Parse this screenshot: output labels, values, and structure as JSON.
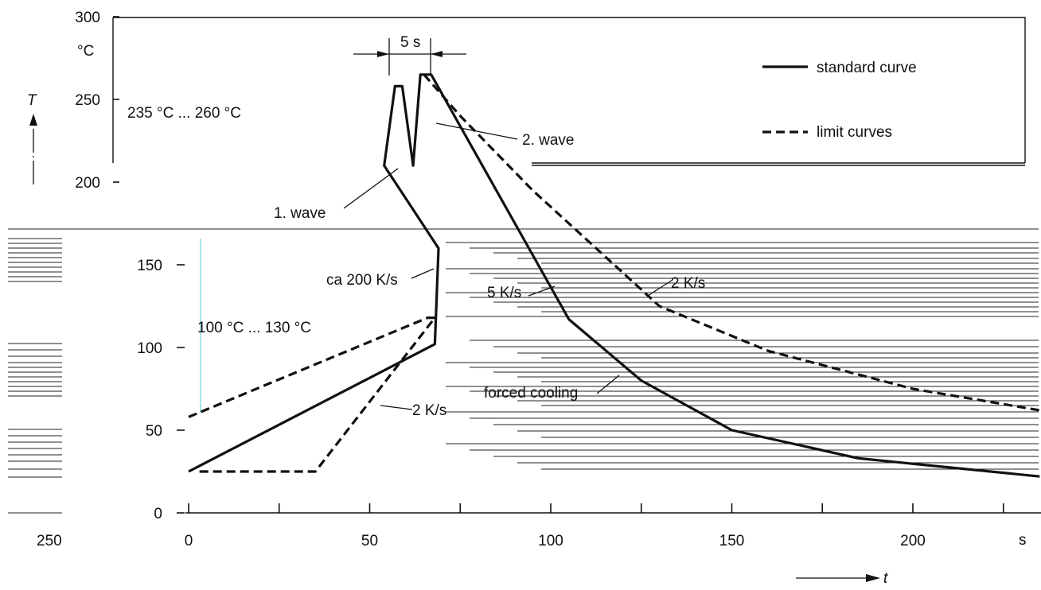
{
  "chart_data": {
    "type": "line",
    "y_unit": "°C",
    "x_unit": "s",
    "y_symbol": "T",
    "x_symbol": "t",
    "y_ticks": [
      0,
      50,
      100,
      150,
      200,
      250,
      300
    ],
    "y_tick_labels": [
      "0",
      "50",
      "100",
      "150",
      "200",
      "250",
      "300"
    ],
    "x_ticks": [
      0,
      50,
      100,
      150,
      200
    ],
    "x_tick_labels": [
      "0",
      "50",
      "100",
      "150",
      "200"
    ],
    "left_cut_x_label": "250",
    "xlim": [
      0,
      235
    ],
    "ylim": [
      0,
      300
    ],
    "legend": {
      "position": "top-right",
      "entries": [
        {
          "label": "standard curve",
          "style": "solid"
        },
        {
          "label": "limit curves",
          "style": "dashed"
        }
      ]
    },
    "annotations": {
      "peak_range": "235 °C ... 260 °C",
      "preheat_range": "100 °C ... 130 °C",
      "duration": "5 s",
      "wave1": "1. wave",
      "wave2": "2. wave",
      "rate_heat": "ca 200 K/s",
      "rate_heat_limit": "2 K/s",
      "rate_cool_std": "5 K/s",
      "rate_cool_limit": "2 K/s",
      "forced_cooling": "forced cooling"
    },
    "series": [
      {
        "style": "solid",
        "points": [
          [
            0,
            25
          ],
          [
            68,
            102
          ],
          [
            69,
            160
          ],
          [
            54,
            210
          ],
          [
            57,
            258
          ],
          [
            59,
            258
          ],
          [
            62,
            210
          ],
          [
            64,
            265
          ],
          [
            67,
            265
          ],
          [
            105,
            117
          ],
          [
            125,
            80
          ],
          [
            150,
            50
          ],
          [
            185,
            33
          ],
          [
            235,
            22
          ]
        ]
      },
      {
        "style": "dashed",
        "points": [
          [
            0,
            58
          ],
          [
            66,
            118
          ],
          [
            68,
            118
          ]
        ]
      },
      {
        "style": "dashed",
        "points": [
          [
            3,
            25
          ],
          [
            35,
            25
          ],
          [
            68,
            118
          ]
        ]
      },
      {
        "style": "dashed",
        "points": [
          [
            65,
            265
          ],
          [
            75,
            240
          ],
          [
            95,
            195
          ],
          [
            115,
            155
          ],
          [
            130,
            125
          ],
          [
            160,
            98
          ],
          [
            200,
            75
          ],
          [
            235,
            62
          ]
        ]
      }
    ]
  }
}
